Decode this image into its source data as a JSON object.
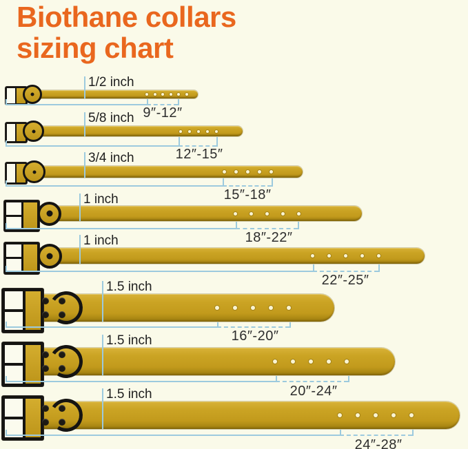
{
  "title": {
    "line1": "Biothane collars",
    "line2": "sizing chart"
  },
  "rows": [
    {
      "width_label": "1/2 inch",
      "size_range": "9″-12″"
    },
    {
      "width_label": "5/8 inch",
      "size_range": "12″-15″"
    },
    {
      "width_label": "3/4 inch",
      "size_range": "15″-18″"
    },
    {
      "width_label": "1 inch",
      "size_range": "18″-22″"
    },
    {
      "width_label": "1 inch",
      "size_range": "22″-25″"
    },
    {
      "width_label": "1.5 inch",
      "size_range": "16″-20″"
    },
    {
      "width_label": "1.5 inch",
      "size_range": "20″-24″"
    },
    {
      "width_label": "1.5 inch",
      "size_range": "24″-28″"
    }
  ],
  "colors": {
    "background": "#FAFAE9",
    "title_orange": "#E9671E",
    "strap_gold": "#C7A01F",
    "bracket_blue": "#9CCADE",
    "buckle_black": "#151412"
  }
}
